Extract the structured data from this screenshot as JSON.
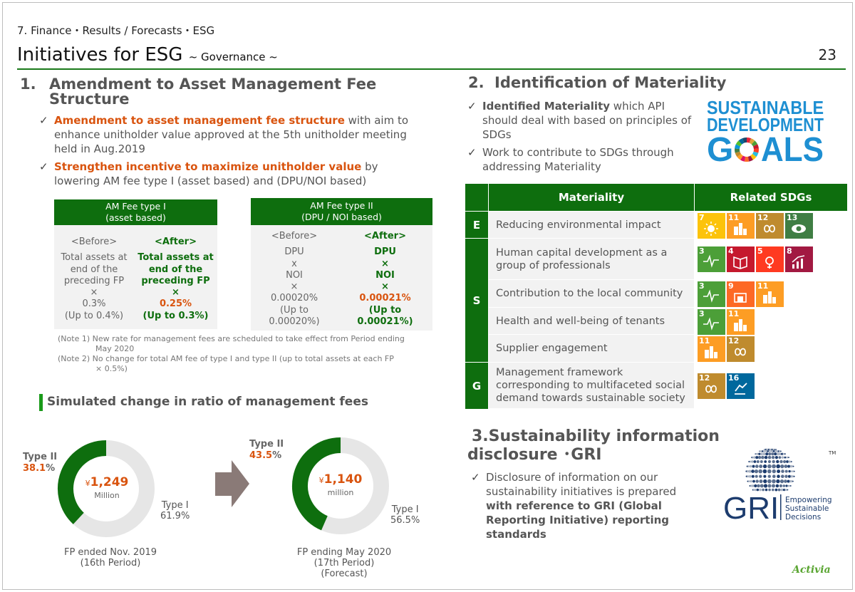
{
  "header": {
    "section_label": "7. Finance・Results / Forecasts・ESG",
    "title": "Initiatives for ESG",
    "subtitle": "~ Governance ~",
    "page_number": "23"
  },
  "section1": {
    "heading_num": "1.",
    "heading": "Amendment to Asset Management Fee Structure",
    "bullet1": {
      "highlight": "Amendment to asset management fee structure",
      "rest": " with aim to enhance unitholder value approved at the 5th unitholder meeting held in Aug.2019"
    },
    "bullet2": {
      "highlight": "Strengthen incentive to maximize unitholder value",
      "rest": " by lowering AM fee type I (asset based) and (DPU/NOI based)"
    },
    "fee1": {
      "header_line1": "AM Fee type I",
      "header_line2": "(asset based)",
      "before": [
        "<Before>",
        "Total assets at",
        "end of the",
        "preceding FP",
        "×",
        "0.3%",
        "(Up to 0.4%)"
      ],
      "after": [
        "<After>",
        "Total assets at",
        "end of the",
        "preceding FP",
        "×",
        "0.25%",
        "(Up to 0.3%)"
      ]
    },
    "fee2": {
      "header_line1": "AM Fee type II",
      "header_line2": "(DPU / NOI based)",
      "before": [
        "<Before>",
        "DPU",
        "x",
        "NOI",
        "×",
        "0.00020%",
        "(Up to",
        "0.00020%)"
      ],
      "after": [
        "<After>",
        "DPU",
        "×",
        "NOI",
        "×",
        "0.00021%",
        "(Up to",
        "0.00021%)"
      ]
    },
    "note1_a": "(Note 1) New rate for management fees are scheduled to take effect from Period ending",
    "note1_b": "May 2020",
    "note2_a": "(Note 2) No change for total AM fee of type I and type II (up to total assets at each FP",
    "note2_b": "× 0.5%)",
    "sim_title": "Simulated change in ratio of management fees"
  },
  "chart_data": [
    {
      "type": "pie",
      "title": "FP ended Nov. 2019 (16th Period)",
      "center_value": "¥1,249",
      "center_unit": "Million",
      "slices": [
        {
          "name": "Type II",
          "value": 38.1
        },
        {
          "name": "Type I",
          "value": 61.9
        }
      ]
    },
    {
      "type": "pie",
      "title": "FP ending May 2020 (17th Period) (Forecast)",
      "center_value": "¥1,140",
      "center_unit": "million",
      "slices": [
        {
          "name": "Type II",
          "value": 43.5
        },
        {
          "name": "Type I",
          "value": 56.5
        }
      ]
    }
  ],
  "donut1": {
    "type2_label": "Type II",
    "type2_pct_num": "38.1",
    "type2_pct_sign": "%",
    "type1_label": "Type I",
    "type1_pct": "61.9%",
    "yen": "¥",
    "amount": "1,249",
    "unit": "Million",
    "caption1": "FP ended Nov. 2019",
    "caption2": "(16th Period)"
  },
  "donut2": {
    "type2_label": "Type II",
    "type2_pct_num": "43.5",
    "type2_pct_sign": "%",
    "type1_label": "Type I",
    "type1_pct": "56.5%",
    "yen": "¥",
    "amount": "1,140",
    "unit": "million",
    "caption1": "FP ending May 2020",
    "caption2": "(17th Period)",
    "caption3": "(Forecast)"
  },
  "colors": {
    "green": "#0e6e0e",
    "orange": "#d9540f",
    "light_gray": "#e6e6e6",
    "arrow": "#8a7a77"
  },
  "section2": {
    "heading_num": "2.",
    "heading": "Identification of Materiality",
    "bullet1": {
      "highlight": "Identified Materiality",
      "rest": " which API should deal with based on principles of SDGs"
    },
    "bullet2": "Work to contribute to SDGs through addressing Materiality",
    "sdg_logo_line1": "SUSTAINABLE",
    "sdg_logo_line2": "DEVELOPMENT",
    "sdg_logo_line3a": "G",
    "sdg_logo_line3b": "ALS",
    "table": {
      "col_materiality": "Materiality",
      "col_sdgs": "Related SDGs",
      "cat_e": "E",
      "cat_s": "S",
      "cat_g": "G",
      "rows": [
        {
          "text": "Reducing environmental impact",
          "sdgs": [
            "7",
            "11",
            "12",
            "13"
          ]
        },
        {
          "text": "Human capital development as a group of professionals",
          "sdgs": [
            "3",
            "4",
            "5",
            "8"
          ]
        },
        {
          "text": "Contribution to the local community",
          "sdgs": [
            "3",
            "9",
            "11"
          ]
        },
        {
          "text": "Health and well-being of tenants",
          "sdgs": [
            "3",
            "11"
          ]
        },
        {
          "text": "Supplier engagement",
          "sdgs": [
            "11",
            "12"
          ]
        },
        {
          "text": "Management framework corresponding to multifaceted social demand towards sustainable society",
          "sdgs": [
            "12",
            "16"
          ]
        }
      ]
    }
  },
  "section3": {
    "heading_line1": "3.Sustainability information",
    "heading_line2": "disclosure ･GRI",
    "bullet_plain": "Disclosure of information on our sustainability initiatives is prepared ",
    "bullet_bold": "with reference to GRI (Global Reporting Initiative) reporting standards",
    "gri_letters": "GRI",
    "gri_tag1": "Empowering",
    "gri_tag2": "Sustainable",
    "gri_tag3": "Decisions",
    "gri_tm": "TM"
  },
  "footer": {
    "brand": "Activia"
  }
}
